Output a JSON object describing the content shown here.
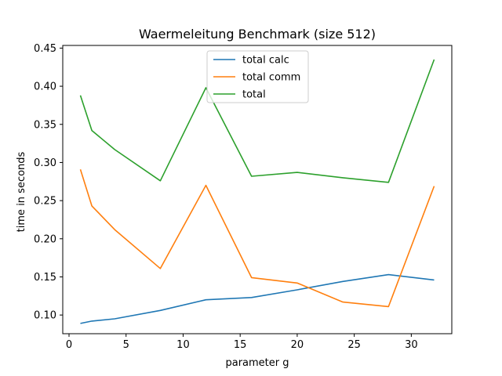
{
  "chart_data": {
    "type": "line",
    "title": "Waermeleitung Benchmark (size 512)",
    "xlabel": "parameter g",
    "ylabel": "time in seconds",
    "xlim": [
      -0.55,
      33.55
    ],
    "ylim": [
      0.0755,
      0.4535
    ],
    "xticks": [
      0,
      5,
      10,
      15,
      20,
      25,
      30
    ],
    "yticks": [
      0.1,
      0.15,
      0.2,
      0.25,
      0.3,
      0.35,
      0.4,
      0.45
    ],
    "grid": false,
    "legend_position": "top-center",
    "x": [
      1,
      2,
      4,
      8,
      12,
      16,
      20,
      24,
      28,
      32
    ],
    "series": [
      {
        "name": "total calc",
        "color": "#1f77b4",
        "values": [
          0.089,
          0.092,
          0.095,
          0.106,
          0.12,
          0.123,
          0.133,
          0.144,
          0.153,
          0.146
        ]
      },
      {
        "name": "total comm",
        "color": "#ff7f0e",
        "values": [
          0.291,
          0.243,
          0.212,
          0.161,
          0.27,
          0.149,
          0.142,
          0.117,
          0.111,
          0.269
        ]
      },
      {
        "name": "total",
        "color": "#2ca02c",
        "values": [
          0.388,
          0.342,
          0.317,
          0.276,
          0.398,
          0.282,
          0.287,
          0.28,
          0.274,
          0.435
        ]
      }
    ]
  }
}
